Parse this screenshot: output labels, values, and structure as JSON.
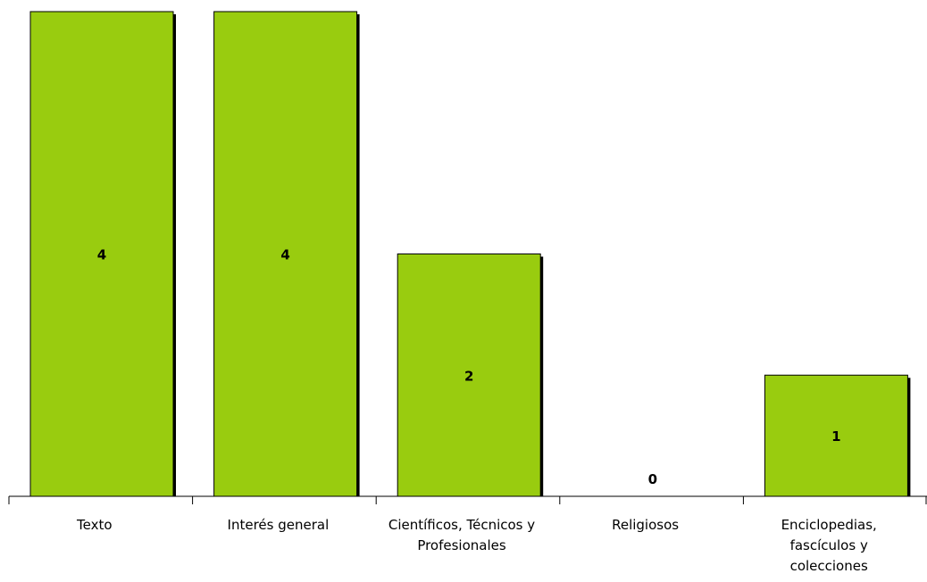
{
  "chart_data": {
    "type": "bar",
    "categories": [
      "Texto",
      "Interés general",
      "Científicos, Técnicos y Profesionales",
      "Religiosos",
      "Enciclopedias, fascículos y colecciones"
    ],
    "category_lines": [
      [
        "Texto"
      ],
      [
        "Interés general"
      ],
      [
        "Científicos, Técnicos y",
        "Profesionales"
      ],
      [
        "Religiosos"
      ],
      [
        "Enciclopedias,",
        "fascículos y",
        "colecciones"
      ]
    ],
    "values": [
      4,
      4,
      2,
      0,
      1
    ],
    "data_labels": [
      "4",
      "4",
      "2",
      "0",
      "1"
    ],
    "ylim": [
      0,
      4
    ],
    "grid": false,
    "legend": "none",
    "colors": {
      "bar": "#99CC0F",
      "shadow": "#000000",
      "axis": "#000000"
    }
  }
}
